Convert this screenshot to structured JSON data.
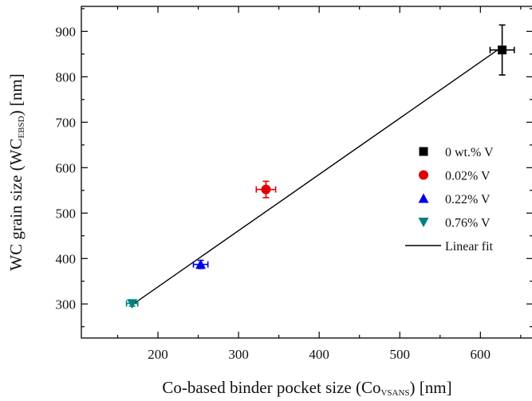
{
  "chart_data": {
    "type": "scatter",
    "xlabel": {
      "main": "Co-based binder pocket size (Co",
      "sub": "VSANS",
      "tail": ") [nm]"
    },
    "ylabel": {
      "main": "WC grain size (WC",
      "sub": "EBSD",
      "tail": ") [nm]"
    },
    "xlim": [
      105,
      665
    ],
    "ylim": [
      225,
      955
    ],
    "xticks": [
      200,
      300,
      400,
      500,
      600
    ],
    "yticks": [
      300,
      400,
      500,
      600,
      700,
      800,
      900
    ],
    "grid": false,
    "legend_position": "center-right",
    "series": [
      {
        "name": "0 wt.% V",
        "marker": "square",
        "color": "#000000",
        "x": 627,
        "y": 859,
        "xerr": 15,
        "yerr": 55
      },
      {
        "name": "0.02% V",
        "marker": "circle",
        "color": "#e00000",
        "x": 334,
        "y": 552,
        "xerr": 12,
        "yerr": 18
      },
      {
        "name": "0.22% V",
        "marker": "triangle-up",
        "color": "#0000ee",
        "x": 253,
        "y": 387,
        "xerr": 9,
        "yerr": 9
      },
      {
        "name": "0.76% V",
        "marker": "triangle-down",
        "color": "#008080",
        "x": 168,
        "y": 301,
        "xerr": 7,
        "yerr": 6
      }
    ],
    "fit": {
      "name": "Linear fit",
      "color": "#000000",
      "x": [
        168,
        627
      ],
      "y": [
        298,
        866
      ]
    }
  }
}
